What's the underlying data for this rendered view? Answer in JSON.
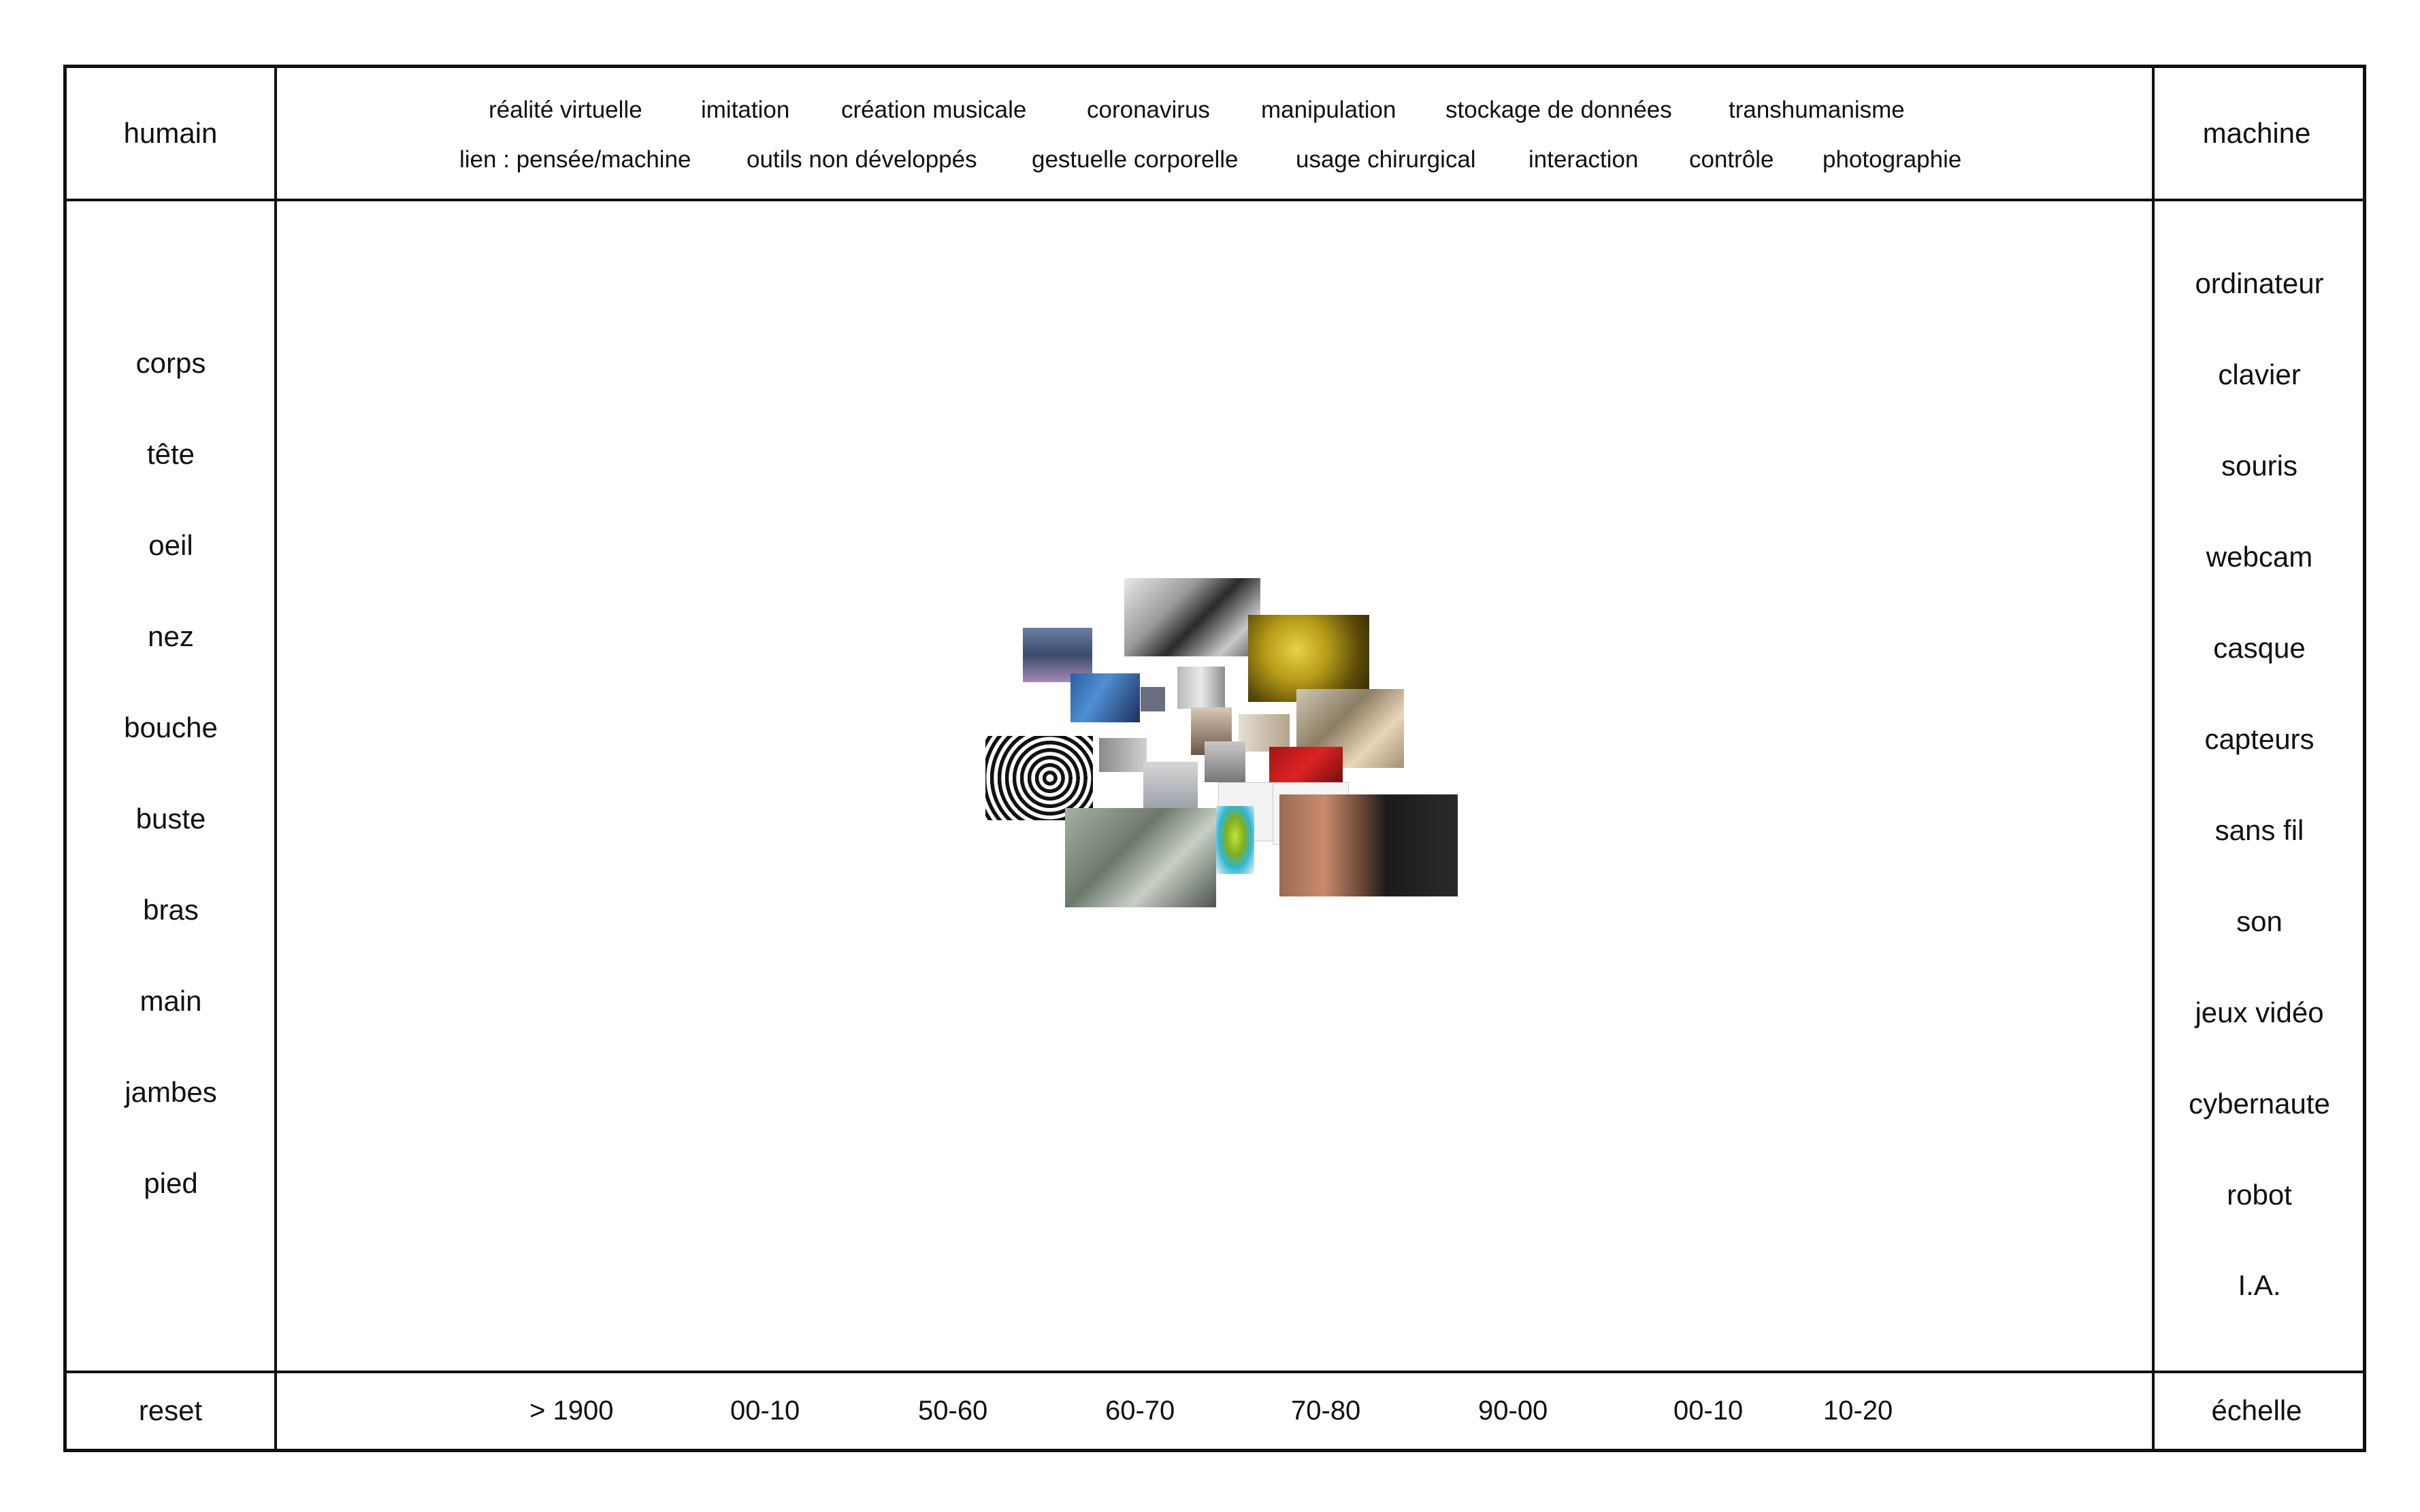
{
  "header": {
    "left": "humain",
    "right": "machine"
  },
  "themes_row1": [
    "réalité virtuelle",
    "imitation",
    "création musicale",
    "coronavirus",
    "manipulation",
    "stockage de données",
    "transhumanisme"
  ],
  "themes_row2": [
    "lien : pensée/machine",
    "outils non développés",
    "gestuelle corporelle",
    "usage chirurgical",
    "interaction",
    "contrôle",
    "photographie"
  ],
  "left_items": [
    "corps",
    "tête",
    "oeil",
    "nez",
    "bouche",
    "buste",
    "bras",
    "main",
    "jambes",
    "pied"
  ],
  "right_items": [
    "ordinateur",
    "clavier",
    "souris",
    "webcam",
    "casque",
    "capteurs",
    "sans fil",
    "son",
    "jeux vidéo",
    "cybernaute",
    "robot",
    "I.A."
  ],
  "footer": {
    "reset": "reset",
    "scale": "échelle",
    "eras": [
      "> 1900",
      "00-10",
      "50-60",
      "60-70",
      "70-80",
      "90-00",
      "00-10",
      "10-20"
    ]
  }
}
